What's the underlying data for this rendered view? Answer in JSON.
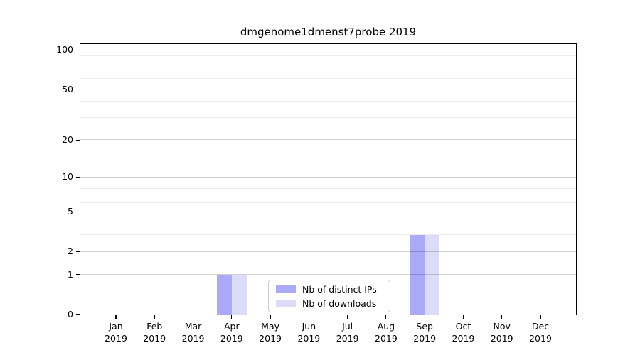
{
  "chart_data": {
    "type": "bar",
    "title": "dmgenome1dmenst7probe 2019",
    "categories": [
      "Jan 2019",
      "Feb 2019",
      "Mar 2019",
      "Apr 2019",
      "May 2019",
      "Jun 2019",
      "Jul 2019",
      "Aug 2019",
      "Sep 2019",
      "Oct 2019",
      "Nov 2019",
      "Dec 2019"
    ],
    "series": [
      {
        "name": "Nb of distinct IPs",
        "color": "#aaaaf8",
        "values": [
          0,
          0,
          0,
          1,
          0,
          0,
          0,
          0,
          3,
          0,
          0,
          0
        ]
      },
      {
        "name": "Nb of downloads",
        "color": "#dcdcf9",
        "values": [
          0,
          0,
          0,
          1,
          0,
          0,
          0,
          0,
          3,
          0,
          0,
          0
        ]
      }
    ],
    "xlabel": "",
    "ylabel": "",
    "yscale": "log1p",
    "ymax": 111,
    "yticks": [
      0,
      1,
      2,
      5,
      10,
      20,
      50,
      100
    ],
    "yticks_minor": [
      3,
      4,
      6,
      7,
      8,
      9,
      30,
      40,
      60,
      70,
      80,
      90
    ],
    "grid": true,
    "grid_on_top_of_bars": true,
    "legend_position": "lower center"
  },
  "colors": {
    "spine": "#000000",
    "major_grid": "rgba(0,0,0,0.18)",
    "minor_grid": "rgba(0,0,0,0.08)",
    "legend_border": "#cccccc",
    "background": "#ffffff"
  }
}
